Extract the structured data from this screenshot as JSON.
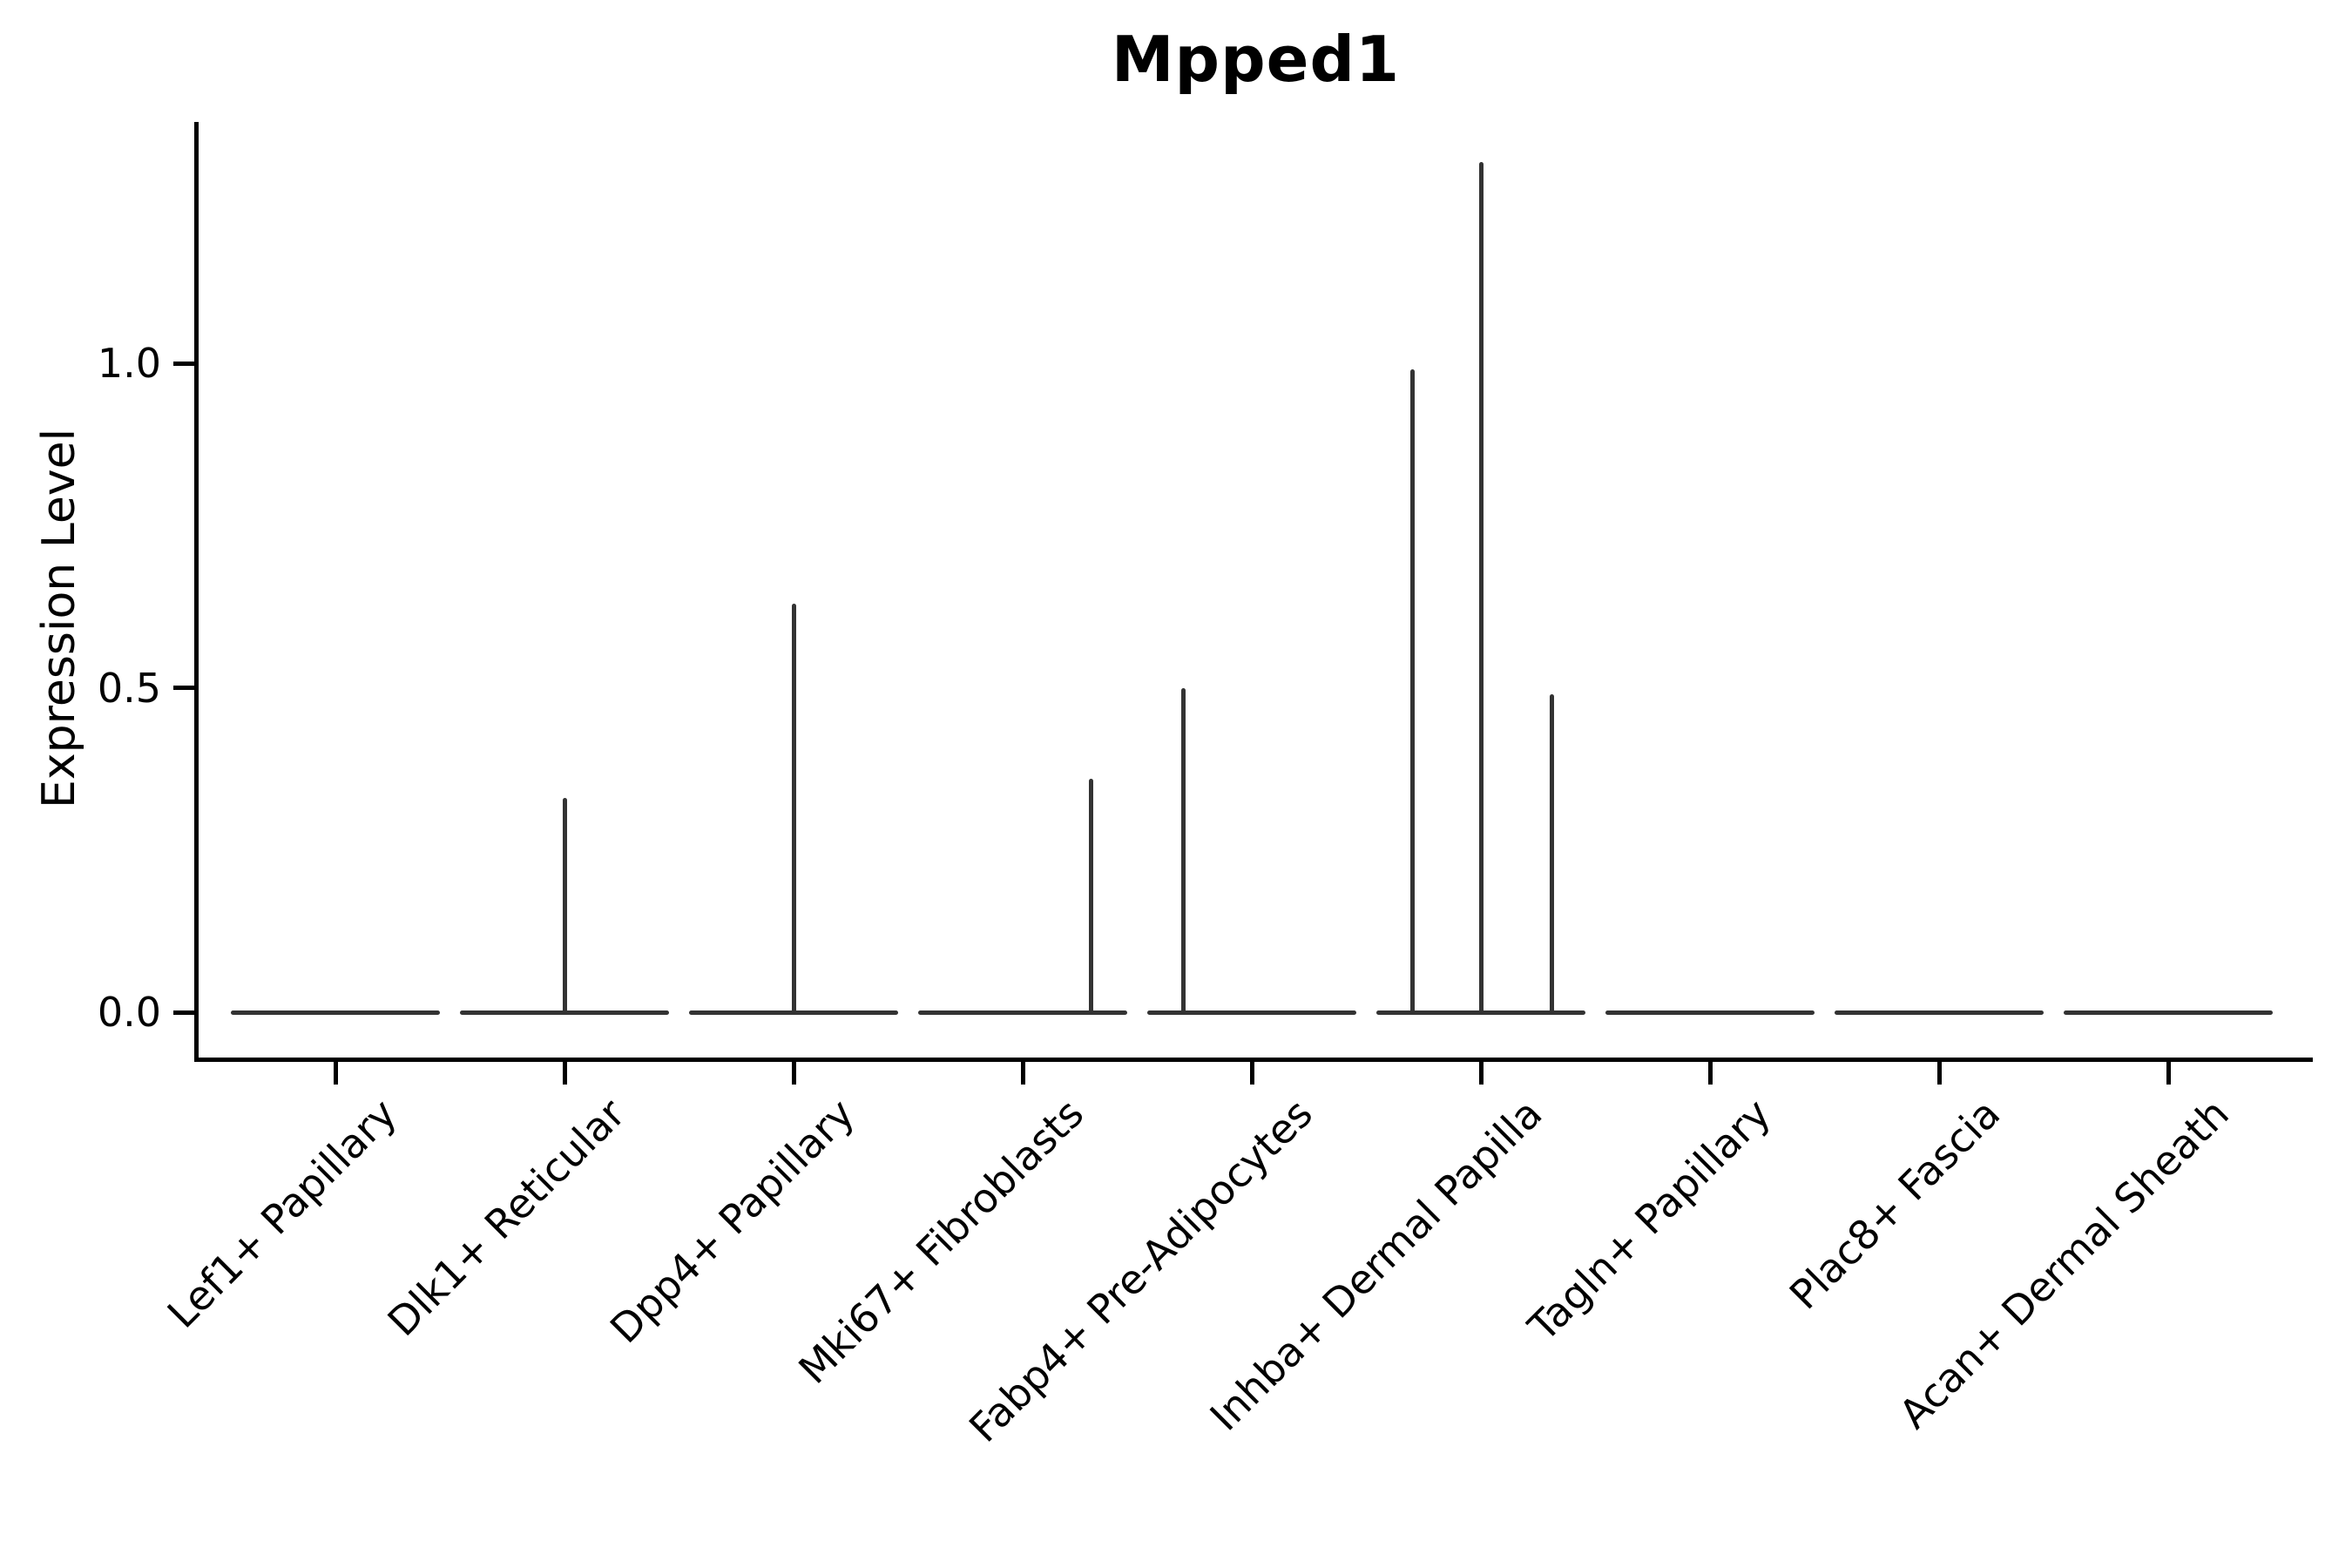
{
  "chart_data": {
    "type": "violin",
    "title": "Mpped1",
    "ylabel": "Expression Level",
    "xlabel": "",
    "grid": false,
    "legend": null,
    "ylim": [
      -0.07,
      1.37
    ],
    "yticks": [
      {
        "label": "0.0",
        "value": 0.0
      },
      {
        "label": "0.5",
        "value": 0.5
      },
      {
        "label": "1.0",
        "value": 1.0
      }
    ],
    "categories": [
      "Lef1+ Papillary",
      "Dlk1+ Reticular",
      "Dpp4+ Papillary",
      "Mki67+ Fibroblasts",
      "Fabp4+ Pre-Adipocytes",
      "Inhba+ Dermal Papilla",
      "Tagln+ Papillary",
      "Plac8+ Fascia",
      "Acan+ Dermal Sheath"
    ],
    "violins": [
      {
        "category": "Lef1+ Papillary",
        "baseline_value": 0.0,
        "spikes": []
      },
      {
        "category": "Dlk1+ Reticular",
        "baseline_value": 0.0,
        "spikes": [
          {
            "offset_frac": 0.0,
            "max_value": 0.33
          }
        ]
      },
      {
        "category": "Dpp4+ Papillary",
        "baseline_value": 0.0,
        "spikes": [
          {
            "offset_frac": 0.0,
            "max_value": 0.63
          }
        ]
      },
      {
        "category": "Mki67+ Fibroblasts",
        "baseline_value": 0.0,
        "spikes": [
          {
            "offset_frac": 0.3,
            "max_value": 0.36
          }
        ]
      },
      {
        "category": "Fabp4+ Pre-Adipocytes",
        "baseline_value": 0.0,
        "spikes": [
          {
            "offset_frac": -0.3,
            "max_value": 0.5
          }
        ]
      },
      {
        "category": "Inhba+ Dermal Papilla",
        "baseline_value": 0.0,
        "spikes": [
          {
            "offset_frac": -0.3,
            "max_value": 0.99
          },
          {
            "offset_frac": 0.0,
            "max_value": 1.31
          },
          {
            "offset_frac": 0.31,
            "max_value": 0.49
          }
        ]
      },
      {
        "category": "Tagln+ Papillary",
        "baseline_value": 0.0,
        "spikes": []
      },
      {
        "category": "Plac8+ Fascia",
        "baseline_value": 0.0,
        "spikes": []
      },
      {
        "category": "Acan+ Dermal Sheath",
        "baseline_value": 0.0,
        "spikes": []
      }
    ],
    "violin_width_frac": 0.91,
    "colors": {
      "violin_stroke": "#333333",
      "axis": "#000000",
      "text": "#000000",
      "background": "#ffffff"
    }
  }
}
